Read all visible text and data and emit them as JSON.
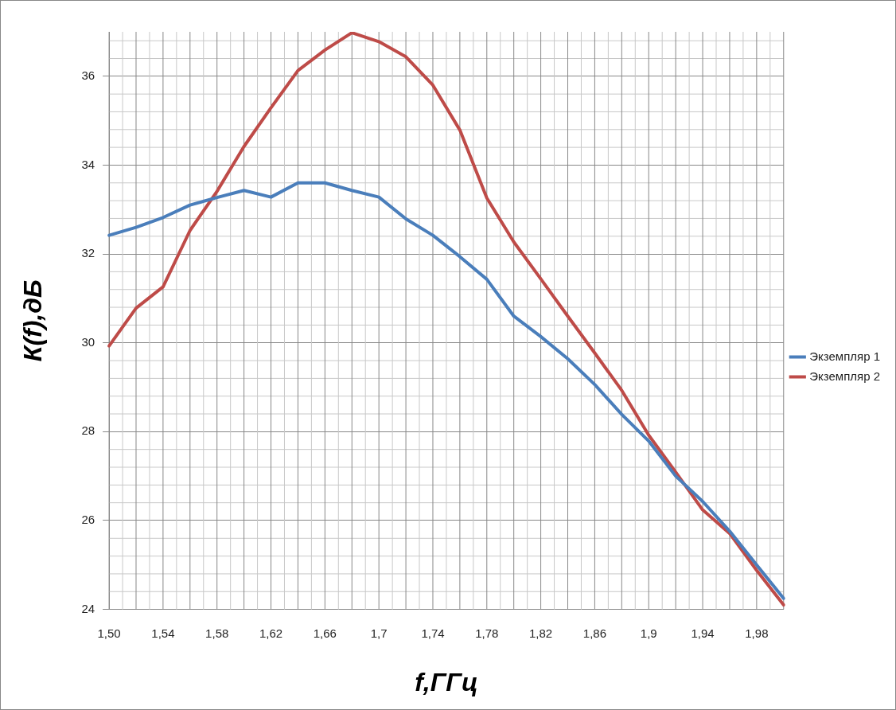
{
  "chart_data": {
    "type": "line",
    "xlabel": "f,ГГц",
    "ylabel": "К(f),дБ",
    "categories": [
      "1,50",
      null,
      "1,54",
      null,
      "1,58",
      null,
      "1,62",
      null,
      "1,66",
      null,
      "1,7",
      null,
      "1,74",
      null,
      "1,78",
      null,
      "1,82",
      null,
      "1,86",
      null,
      "1,9",
      null,
      "1,94",
      null,
      "1,98",
      null
    ],
    "series": [
      {
        "name": "Экземпляр 1",
        "color": "#4a7ebb",
        "values": [
          32.42,
          32.6,
          32.82,
          33.1,
          33.27,
          33.43,
          33.28,
          33.6,
          33.6,
          33.43,
          33.28,
          32.79,
          32.42,
          31.94,
          31.43,
          30.6,
          30.14,
          29.64,
          29.06,
          28.39,
          27.79,
          27.0,
          26.43,
          25.76,
          25.0,
          24.25
        ]
      },
      {
        "name": "Экземпляр 2",
        "color": "#be4b48",
        "values": [
          29.93,
          30.78,
          31.26,
          32.53,
          33.41,
          34.42,
          35.29,
          36.13,
          36.59,
          36.98,
          36.78,
          36.44,
          35.8,
          34.79,
          33.26,
          32.27,
          31.44,
          30.6,
          29.77,
          28.93,
          27.92,
          27.09,
          26.24,
          25.71,
          24.88,
          24.1
        ]
      }
    ],
    "ylim": [
      24,
      37
    ],
    "yticks": [
      24,
      26,
      28,
      30,
      32,
      34,
      36
    ],
    "grid": true,
    "legend": "right",
    "marker": "none",
    "line_style": "solid"
  }
}
